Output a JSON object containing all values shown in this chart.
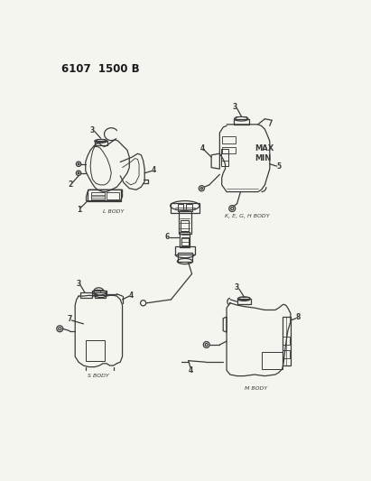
{
  "title": "6107  1500 B",
  "bg": "#f5f5f0",
  "lc": "#3a3a3a",
  "fig_width": 4.11,
  "fig_height": 5.33,
  "dpi": 100,
  "body_labels": {
    "L": "L BODY",
    "S": "S BODY",
    "K": "K, E, G, H BODY",
    "M": "M BODY"
  }
}
